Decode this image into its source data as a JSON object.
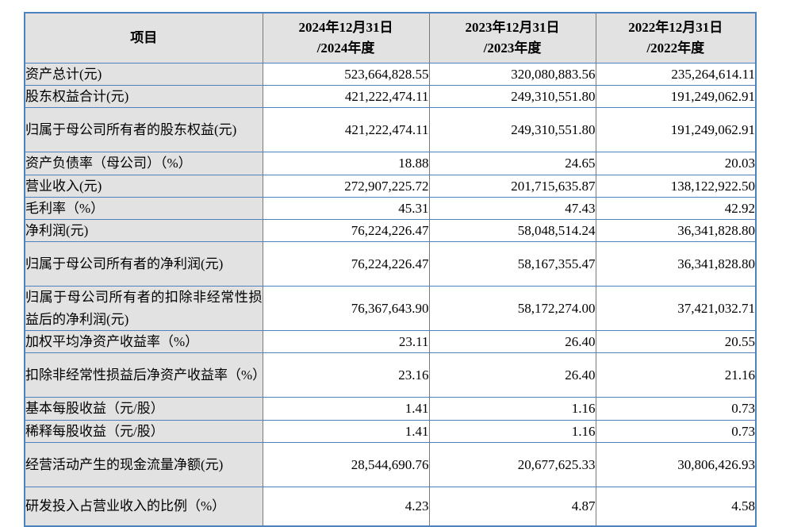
{
  "colors": {
    "border": "#4f81bd",
    "shaded_bg": "#e2e2e2",
    "text": "#000000",
    "page_bg": "#ffffff"
  },
  "table": {
    "header": {
      "item": "项目",
      "periods": [
        {
          "line1": "2024年12月31日",
          "line2": "/2024年度"
        },
        {
          "line1": "2023年12月31日",
          "line2": "/2023年度"
        },
        {
          "line1": "2022年12月31日",
          "line2": "/2022年度"
        }
      ]
    },
    "rows": [
      {
        "label": "资产总计(元)",
        "y2024": "523,664,828.55",
        "y2023": "320,080,883.56",
        "y2022": "235,264,614.11"
      },
      {
        "label": "股东权益合计(元)",
        "y2024": "421,222,474.11",
        "y2023": "249,310,551.80",
        "y2022": "191,249,062.91"
      },
      {
        "label": "归属于母公司所有者的股东权益(元)",
        "y2024": "421,222,474.11",
        "y2023": "249,310,551.80",
        "y2022": "191,249,062.91"
      },
      {
        "label": "资产负债率（母公司）（%）",
        "y2024": "18.88",
        "y2023": "24.65",
        "y2022": "20.03"
      },
      {
        "label": "营业收入(元)",
        "y2024": "272,907,225.72",
        "y2023": "201,715,635.87",
        "y2022": "138,122,922.50"
      },
      {
        "label": "毛利率（%）",
        "y2024": "45.31",
        "y2023": "47.43",
        "y2022": "42.92"
      },
      {
        "label": "净利润(元)",
        "y2024": "76,224,226.47",
        "y2023": "58,048,514.24",
        "y2022": "36,341,828.80"
      },
      {
        "label": "归属于母公司所有者的净利润(元)",
        "y2024": "76,224,226.47",
        "y2023": "58,167,355.47",
        "y2022": "36,341,828.80"
      },
      {
        "label": "归属于母公司所有者的扣除非经常性损益后的净利润(元)",
        "y2024": "76,367,643.90",
        "y2023": "58,172,274.00",
        "y2022": "37,421,032.71"
      },
      {
        "label": "加权平均净资产收益率（%）",
        "y2024": "23.11",
        "y2023": "26.40",
        "y2022": "20.55"
      },
      {
        "label": "扣除非经常性损益后净资产收益率（%）",
        "y2024": "23.16",
        "y2023": "26.40",
        "y2022": "21.16"
      },
      {
        "label": "基本每股收益（元/股）",
        "y2024": "1.41",
        "y2023": "1.16",
        "y2022": "0.73"
      },
      {
        "label": "稀释每股收益（元/股）",
        "y2024": "1.41",
        "y2023": "1.16",
        "y2022": "0.73"
      },
      {
        "label": "经营活动产生的现金流量净额(元)",
        "y2024": "28,544,690.76",
        "y2023": "20,677,625.33",
        "y2022": "30,806,426.93"
      },
      {
        "label": "研发投入占营业收入的比例（%）",
        "y2024": "4.23",
        "y2023": "4.87",
        "y2022": "4.58"
      }
    ]
  }
}
